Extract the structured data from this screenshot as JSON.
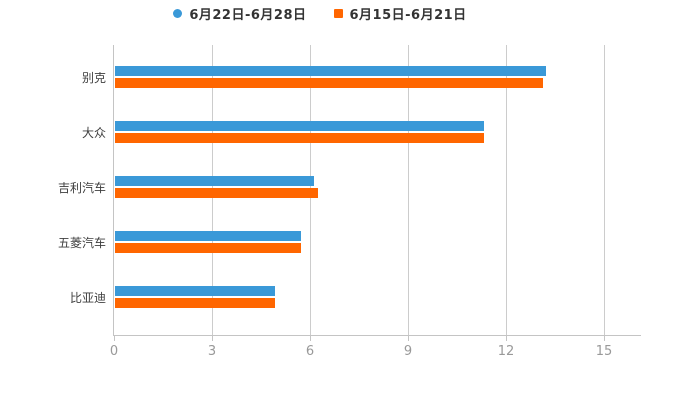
{
  "legend": {
    "items": [
      {
        "label": "6月22日-6月28日",
        "marker": "circle-icon",
        "color": "#3A99D8"
      },
      {
        "label": "6月15日-6月21日",
        "marker": "square-icon",
        "color": "#FF6600"
      }
    ],
    "text_color": "#333333"
  },
  "chart_data": {
    "type": "bar",
    "orientation": "horizontal",
    "title": "",
    "xlabel": "",
    "ylabel": "",
    "categories": [
      "别克",
      "大众",
      "吉利汽车",
      "五菱汽车",
      "比亚迪"
    ],
    "series": [
      {
        "name": "6月22日-6月28日",
        "color": "#3A99D8",
        "values": [
          13.2,
          11.3,
          6.1,
          5.7,
          4.9
        ]
      },
      {
        "name": "6月15日-6月21日",
        "color": "#FF6600",
        "values": [
          13.1,
          11.3,
          6.2,
          5.7,
          4.9
        ]
      }
    ],
    "xlim": [
      0,
      15
    ],
    "xticks": [
      0,
      3,
      6,
      9,
      12,
      15
    ],
    "grid": "vertical-only",
    "legend_position": "top-center",
    "axis_color": "#c4c4c4",
    "gridline_color": "#cccccc",
    "tick_label_color": "#999999",
    "category_label_color": "#3f3f3f"
  }
}
